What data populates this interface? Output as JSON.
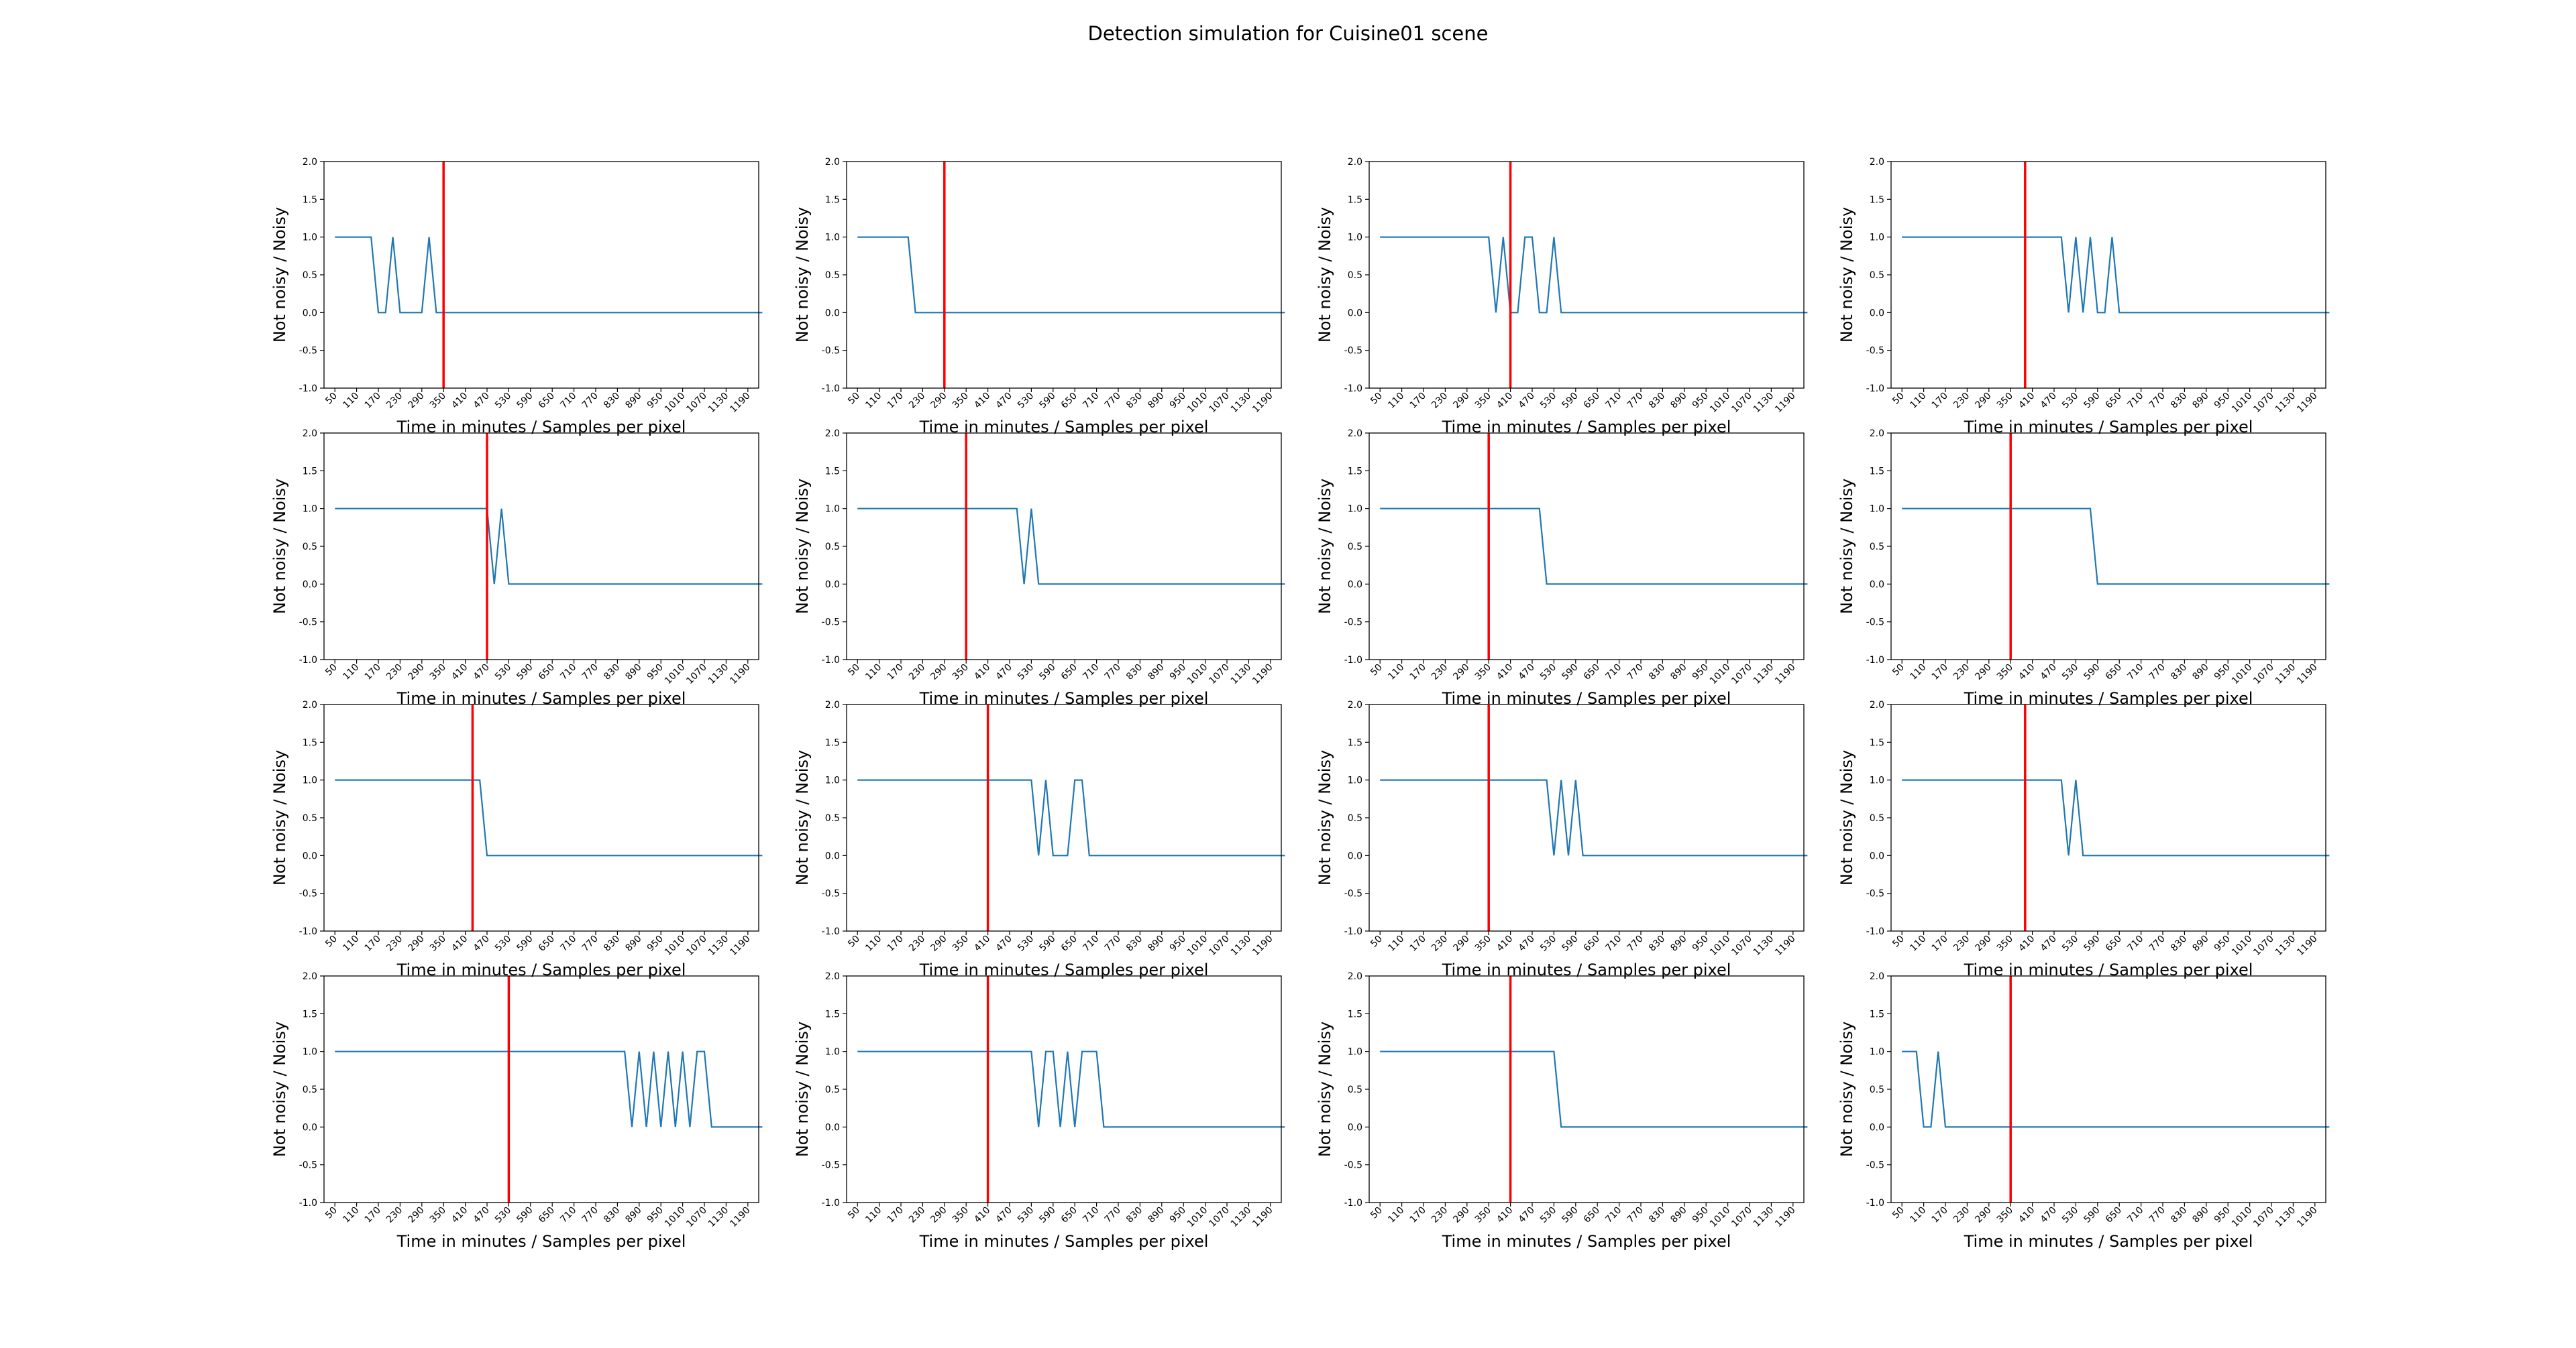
{
  "figure": {
    "title": "Detection simulation for Cuisine01 scene"
  },
  "chart_data": {
    "type": "line",
    "grid": false,
    "layout": "4x4",
    "xlabel": "Time in minutes / Samples per pixel",
    "ylabel": "Not noisy / Noisy",
    "ylim": [
      -1.0,
      2.0
    ],
    "yticks": [
      "-1.0",
      "-0.5",
      "0.0",
      "0.5",
      "1.0",
      "1.5",
      "2.0"
    ],
    "xticks": [
      "50",
      "110",
      "170",
      "230",
      "290",
      "350",
      "410",
      "470",
      "530",
      "590",
      "650",
      "710",
      "770",
      "830",
      "890",
      "950",
      "1010",
      "1070",
      "1130",
      "1190"
    ],
    "series_color": "#1f77b4",
    "threshold_color": "#ff0000",
    "panels": [
      {
        "threshold": 350,
        "values": [
          1,
          1,
          1,
          1,
          1,
          1,
          0,
          0,
          1,
          0,
          0,
          0,
          0,
          1,
          0,
          0,
          0,
          0,
          0,
          0,
          0,
          0,
          0,
          0,
          0,
          0,
          0,
          0,
          0,
          0,
          0,
          0,
          0,
          0,
          0,
          0,
          0,
          0,
          0,
          0,
          0,
          0,
          0,
          0,
          0,
          0,
          0,
          0,
          0,
          0,
          0,
          0,
          0,
          0,
          0,
          0,
          0,
          0,
          0,
          0
        ]
      },
      {
        "threshold": 290,
        "values": [
          1,
          1,
          1,
          1,
          1,
          1,
          1,
          1,
          0,
          0,
          0,
          0,
          0,
          0,
          0,
          0,
          0,
          0,
          0,
          0,
          0,
          0,
          0,
          0,
          0,
          0,
          0,
          0,
          0,
          0,
          0,
          0,
          0,
          0,
          0,
          0,
          0,
          0,
          0,
          0,
          0,
          0,
          0,
          0,
          0,
          0,
          0,
          0,
          0,
          0,
          0,
          0,
          0,
          0,
          0,
          0,
          0,
          0,
          0,
          0
        ]
      },
      {
        "threshold": 410,
        "values": [
          1,
          1,
          1,
          1,
          1,
          1,
          1,
          1,
          1,
          1,
          1,
          1,
          1,
          1,
          1,
          1,
          0,
          1,
          0,
          0,
          1,
          1,
          0,
          0,
          1,
          0,
          0,
          0,
          0,
          0,
          0,
          0,
          0,
          0,
          0,
          0,
          0,
          0,
          0,
          0,
          0,
          0,
          0,
          0,
          0,
          0,
          0,
          0,
          0,
          0,
          0,
          0,
          0,
          0,
          0,
          0,
          0,
          0,
          0,
          0
        ]
      },
      {
        "threshold": 390,
        "values": [
          1,
          1,
          1,
          1,
          1,
          1,
          1,
          1,
          1,
          1,
          1,
          1,
          1,
          1,
          1,
          1,
          1,
          1,
          1,
          1,
          1,
          1,
          1,
          0,
          1,
          0,
          1,
          0,
          0,
          1,
          0,
          0,
          0,
          0,
          0,
          0,
          0,
          0,
          0,
          0,
          0,
          0,
          0,
          0,
          0,
          0,
          0,
          0,
          0,
          0,
          0,
          0,
          0,
          0,
          0,
          0,
          0,
          0,
          0,
          0
        ]
      },
      {
        "threshold": 470,
        "values": [
          1,
          1,
          1,
          1,
          1,
          1,
          1,
          1,
          1,
          1,
          1,
          1,
          1,
          1,
          1,
          1,
          1,
          1,
          1,
          1,
          1,
          1,
          0,
          1,
          0,
          0,
          0,
          0,
          0,
          0,
          0,
          0,
          0,
          0,
          0,
          0,
          0,
          0,
          0,
          0,
          0,
          0,
          0,
          0,
          0,
          0,
          0,
          0,
          0,
          0,
          0,
          0,
          0,
          0,
          0,
          0,
          0,
          0,
          0,
          0
        ]
      },
      {
        "threshold": 350,
        "values": [
          1,
          1,
          1,
          1,
          1,
          1,
          1,
          1,
          1,
          1,
          1,
          1,
          1,
          1,
          1,
          1,
          1,
          1,
          1,
          1,
          1,
          1,
          1,
          0,
          1,
          0,
          0,
          0,
          0,
          0,
          0,
          0,
          0,
          0,
          0,
          0,
          0,
          0,
          0,
          0,
          0,
          0,
          0,
          0,
          0,
          0,
          0,
          0,
          0,
          0,
          0,
          0,
          0,
          0,
          0,
          0,
          0,
          0,
          0,
          0
        ]
      },
      {
        "threshold": 350,
        "values": [
          1,
          1,
          1,
          1,
          1,
          1,
          1,
          1,
          1,
          1,
          1,
          1,
          1,
          1,
          1,
          1,
          1,
          1,
          1,
          1,
          1,
          1,
          1,
          0,
          0,
          0,
          0,
          0,
          0,
          0,
          0,
          0,
          0,
          0,
          0,
          0,
          0,
          0,
          0,
          0,
          0,
          0,
          0,
          0,
          0,
          0,
          0,
          0,
          0,
          0,
          0,
          0,
          0,
          0,
          0,
          0,
          0,
          0,
          0,
          0
        ]
      },
      {
        "threshold": 350,
        "values": [
          1,
          1,
          1,
          1,
          1,
          1,
          1,
          1,
          1,
          1,
          1,
          1,
          1,
          1,
          1,
          1,
          1,
          1,
          1,
          1,
          1,
          1,
          1,
          1,
          1,
          1,
          1,
          0,
          0,
          0,
          0,
          0,
          0,
          0,
          0,
          0,
          0,
          0,
          0,
          0,
          0,
          0,
          0,
          0,
          0,
          0,
          0,
          0,
          0,
          0,
          0,
          0,
          0,
          0,
          0,
          0,
          0,
          0,
          0,
          0
        ]
      },
      {
        "threshold": 430,
        "values": [
          1,
          1,
          1,
          1,
          1,
          1,
          1,
          1,
          1,
          1,
          1,
          1,
          1,
          1,
          1,
          1,
          1,
          1,
          1,
          1,
          1,
          0,
          0,
          0,
          0,
          0,
          0,
          0,
          0,
          0,
          0,
          0,
          0,
          0,
          0,
          0,
          0,
          0,
          0,
          0,
          0,
          0,
          0,
          0,
          0,
          0,
          0,
          0,
          0,
          0,
          0,
          0,
          0,
          0,
          0,
          0,
          0,
          0,
          0,
          0
        ]
      },
      {
        "threshold": 410,
        "values": [
          1,
          1,
          1,
          1,
          1,
          1,
          1,
          1,
          1,
          1,
          1,
          1,
          1,
          1,
          1,
          1,
          1,
          1,
          1,
          1,
          1,
          1,
          1,
          1,
          1,
          0,
          1,
          0,
          0,
          0,
          1,
          1,
          0,
          0,
          0,
          0,
          0,
          0,
          0,
          0,
          0,
          0,
          0,
          0,
          0,
          0,
          0,
          0,
          0,
          0,
          0,
          0,
          0,
          0,
          0,
          0,
          0,
          0,
          0,
          0
        ]
      },
      {
        "threshold": 350,
        "values": [
          1,
          1,
          1,
          1,
          1,
          1,
          1,
          1,
          1,
          1,
          1,
          1,
          1,
          1,
          1,
          1,
          1,
          1,
          1,
          1,
          1,
          1,
          1,
          1,
          0,
          1,
          0,
          1,
          0,
          0,
          0,
          0,
          0,
          0,
          0,
          0,
          0,
          0,
          0,
          0,
          0,
          0,
          0,
          0,
          0,
          0,
          0,
          0,
          0,
          0,
          0,
          0,
          0,
          0,
          0,
          0,
          0,
          0,
          0,
          0
        ]
      },
      {
        "threshold": 390,
        "values": [
          1,
          1,
          1,
          1,
          1,
          1,
          1,
          1,
          1,
          1,
          1,
          1,
          1,
          1,
          1,
          1,
          1,
          1,
          1,
          1,
          1,
          1,
          1,
          0,
          1,
          0,
          0,
          0,
          0,
          0,
          0,
          0,
          0,
          0,
          0,
          0,
          0,
          0,
          0,
          0,
          0,
          0,
          0,
          0,
          0,
          0,
          0,
          0,
          0,
          0,
          0,
          0,
          0,
          0,
          0,
          0,
          0,
          0,
          0,
          0
        ]
      },
      {
        "threshold": 530,
        "values": [
          1,
          1,
          1,
          1,
          1,
          1,
          1,
          1,
          1,
          1,
          1,
          1,
          1,
          1,
          1,
          1,
          1,
          1,
          1,
          1,
          1,
          1,
          1,
          1,
          1,
          1,
          1,
          1,
          1,
          1,
          1,
          1,
          1,
          1,
          1,
          1,
          1,
          1,
          1,
          1,
          1,
          0,
          1,
          0,
          1,
          0,
          1,
          0,
          1,
          0,
          1,
          1,
          0,
          0,
          0,
          0,
          0,
          0,
          0,
          0
        ]
      },
      {
        "threshold": 410,
        "values": [
          1,
          1,
          1,
          1,
          1,
          1,
          1,
          1,
          1,
          1,
          1,
          1,
          1,
          1,
          1,
          1,
          1,
          1,
          1,
          1,
          1,
          1,
          1,
          1,
          1,
          0,
          1,
          1,
          0,
          1,
          0,
          1,
          1,
          1,
          0,
          0,
          0,
          0,
          0,
          0,
          0,
          0,
          0,
          0,
          0,
          0,
          0,
          0,
          0,
          0,
          0,
          0,
          0,
          0,
          0,
          0,
          0,
          0,
          0,
          0
        ]
      },
      {
        "threshold": 410,
        "values": [
          1,
          1,
          1,
          1,
          1,
          1,
          1,
          1,
          1,
          1,
          1,
          1,
          1,
          1,
          1,
          1,
          1,
          1,
          1,
          1,
          1,
          1,
          1,
          1,
          1,
          0,
          0,
          0,
          0,
          0,
          0,
          0,
          0,
          0,
          0,
          0,
          0,
          0,
          0,
          0,
          0,
          0,
          0,
          0,
          0,
          0,
          0,
          0,
          0,
          0,
          0,
          0,
          0,
          0,
          0,
          0,
          0,
          0,
          0,
          0
        ]
      },
      {
        "threshold": 350,
        "values": [
          1,
          1,
          1,
          0,
          0,
          1,
          0,
          0,
          0,
          0,
          0,
          0,
          0,
          0,
          0,
          0,
          0,
          0,
          0,
          0,
          0,
          0,
          0,
          0,
          0,
          0,
          0,
          0,
          0,
          0,
          0,
          0,
          0,
          0,
          0,
          0,
          0,
          0,
          0,
          0,
          0,
          0,
          0,
          0,
          0,
          0,
          0,
          0,
          0,
          0,
          0,
          0,
          0,
          0,
          0,
          0,
          0,
          0,
          0,
          0
        ]
      }
    ]
  }
}
